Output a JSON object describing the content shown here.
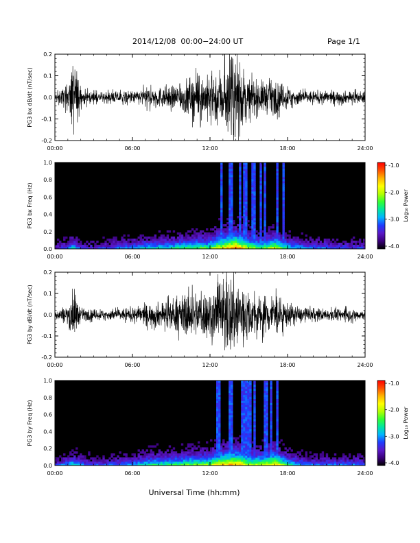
{
  "header": {
    "title": "2014/12/08  00:00−24:00 UT",
    "page": "Page 1/1"
  },
  "xlabel": "Universal Time (hh:mm)",
  "colorbar": {
    "label": "Log₁₀ Power",
    "ticks": [
      "-1.0",
      "-2.0",
      "-3.0",
      "-4.0"
    ],
    "range": [
      -4.0,
      -1.0
    ],
    "colors": [
      "#000000",
      "#3a007a",
      "#5a18c8",
      "#1e3cff",
      "#00b4ff",
      "#00e6a0",
      "#32ff32",
      "#b4ff00",
      "#ffff00",
      "#ffb400",
      "#ff5000",
      "#ff0000"
    ]
  },
  "chart_data": [
    {
      "type": "line",
      "title": "",
      "xlabel": "",
      "ylabel": "PG3 bx dB/dt (nT/sec)",
      "xticks": [
        "00:00",
        "06:00",
        "12:00",
        "18:00",
        "24:00"
      ],
      "xlim": [
        0,
        24
      ],
      "ylim": [
        -0.2,
        0.2
      ],
      "yticks": [
        "0.2",
        "0.1",
        "0.0",
        "-0.1",
        "-0.2"
      ],
      "envelope_hours": [
        0,
        1,
        1.5,
        2,
        3,
        4,
        5,
        6,
        7,
        8,
        9,
        10,
        11,
        12,
        12.5,
        13,
        13.5,
        14,
        14.5,
        15,
        16,
        17,
        18,
        19,
        20,
        21,
        22,
        23,
        24
      ],
      "envelope_amplitude": [
        0.02,
        0.06,
        0.2,
        0.04,
        0.025,
        0.025,
        0.03,
        0.03,
        0.045,
        0.05,
        0.05,
        0.08,
        0.11,
        0.1,
        0.14,
        0.15,
        0.2,
        0.2,
        0.15,
        0.09,
        0.08,
        0.08,
        0.05,
        0.035,
        0.03,
        0.03,
        0.03,
        0.03,
        0.025
      ]
    },
    {
      "type": "heatmap",
      "title": "",
      "xlabel": "",
      "ylabel": "PG3 bx Freq (Hz)",
      "xticks": [
        "00:00",
        "06:00",
        "12:00",
        "18:00",
        "24:00"
      ],
      "xlim": [
        0,
        24
      ],
      "ylim": [
        0.0,
        1.0
      ],
      "yticks": [
        "1.0",
        "0.8",
        "0.6",
        "0.4",
        "0.2",
        "0.0"
      ],
      "activity_hours": [
        0,
        1,
        1.5,
        2,
        3,
        4,
        5,
        6,
        7,
        8,
        9,
        10,
        11,
        12,
        12.5,
        13,
        13.5,
        14,
        14.5,
        15,
        16,
        17,
        18,
        19,
        20,
        21,
        22,
        23,
        24
      ],
      "activity_level": [
        0.2,
        0.35,
        0.5,
        0.25,
        0.25,
        0.3,
        0.35,
        0.4,
        0.45,
        0.5,
        0.5,
        0.55,
        0.6,
        0.6,
        0.75,
        0.8,
        0.9,
        0.95,
        0.85,
        0.7,
        0.6,
        0.75,
        0.5,
        0.4,
        0.35,
        0.35,
        0.3,
        0.3,
        0.3
      ],
      "colorbar_range": [
        -4.0,
        -1.0
      ]
    },
    {
      "type": "line",
      "title": "",
      "xlabel": "",
      "ylabel": "PG3 by dB/dt (nT/sec)",
      "xticks": [
        "00:00",
        "06:00",
        "12:00",
        "18:00",
        "24:00"
      ],
      "xlim": [
        0,
        24
      ],
      "ylim": [
        -0.2,
        0.2
      ],
      "yticks": [
        "0.2",
        "0.1",
        "0.0",
        "-0.1",
        "-0.2"
      ],
      "envelope_hours": [
        0,
        1,
        1.5,
        2,
        3,
        4,
        5,
        6,
        7,
        8,
        9,
        10,
        11,
        12,
        12.5,
        13,
        13.5,
        14,
        14.5,
        15,
        16,
        17,
        18,
        19,
        20,
        21,
        22,
        23,
        24
      ],
      "envelope_amplitude": [
        0.02,
        0.05,
        0.12,
        0.03,
        0.025,
        0.025,
        0.03,
        0.035,
        0.05,
        0.06,
        0.07,
        0.1,
        0.12,
        0.12,
        0.15,
        0.17,
        0.2,
        0.2,
        0.17,
        0.1,
        0.1,
        0.1,
        0.06,
        0.035,
        0.03,
        0.03,
        0.03,
        0.03,
        0.025
      ]
    },
    {
      "type": "heatmap",
      "title": "",
      "xlabel": "",
      "ylabel": "PG3 by Freq (Hz)",
      "xticks": [
        "00:00",
        "06:00",
        "12:00",
        "18:00",
        "24:00"
      ],
      "xlim": [
        0,
        24
      ],
      "ylim": [
        0.0,
        1.0
      ],
      "yticks": [
        "1.0",
        "0.8",
        "0.6",
        "0.4",
        "0.2",
        "0.0"
      ],
      "activity_hours": [
        0,
        1,
        1.5,
        2,
        3,
        4,
        5,
        6,
        7,
        8,
        9,
        10,
        11,
        12,
        12.5,
        13,
        13.5,
        14,
        14.5,
        15,
        16,
        17,
        18,
        19,
        20,
        21,
        22,
        23,
        24
      ],
      "activity_level": [
        0.25,
        0.4,
        0.5,
        0.35,
        0.3,
        0.3,
        0.35,
        0.4,
        0.5,
        0.55,
        0.55,
        0.6,
        0.65,
        0.65,
        0.8,
        0.85,
        0.9,
        0.9,
        0.85,
        0.7,
        0.7,
        0.85,
        0.55,
        0.4,
        0.35,
        0.35,
        0.35,
        0.35,
        0.35
      ],
      "colorbar_range": [
        -4.0,
        -1.0
      ]
    }
  ]
}
